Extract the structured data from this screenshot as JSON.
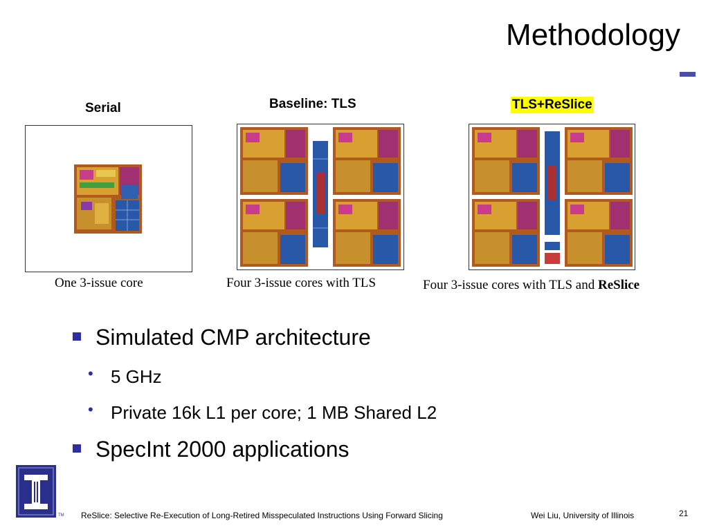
{
  "slide": {
    "title": "Methodology",
    "accent_color": "#4a4fa8",
    "bullet_color": "#2e2e9e"
  },
  "figures": {
    "serial": {
      "heading": "Serial",
      "caption": "One 3-issue core"
    },
    "baseline": {
      "heading": "Baseline: TLS",
      "caption": "Four 3-issue cores with TLS"
    },
    "reslice": {
      "heading": "TLS+ReSlice",
      "heading_highlight": "#ffff00",
      "caption_plain": "Four 3-issue cores with TLS and ",
      "caption_bold": "ReSlice"
    }
  },
  "bullets": [
    {
      "text": "Simulated CMP architecture",
      "level": 1
    },
    {
      "text": "5 GHz",
      "level": 2
    },
    {
      "text": "Private 16k L1 per core; 1 MB Shared L2",
      "level": 2
    },
    {
      "text": "SpecInt 2000 applications",
      "level": 1
    }
  ],
  "footer": {
    "logo_tm": "TM",
    "paper_title": "ReSlice: Selective Re-Execution of Long-Retired Misspeculated Instructions Using Forward Slicing",
    "author": "Wei Liu, University of Illinois",
    "page_number": "21"
  }
}
